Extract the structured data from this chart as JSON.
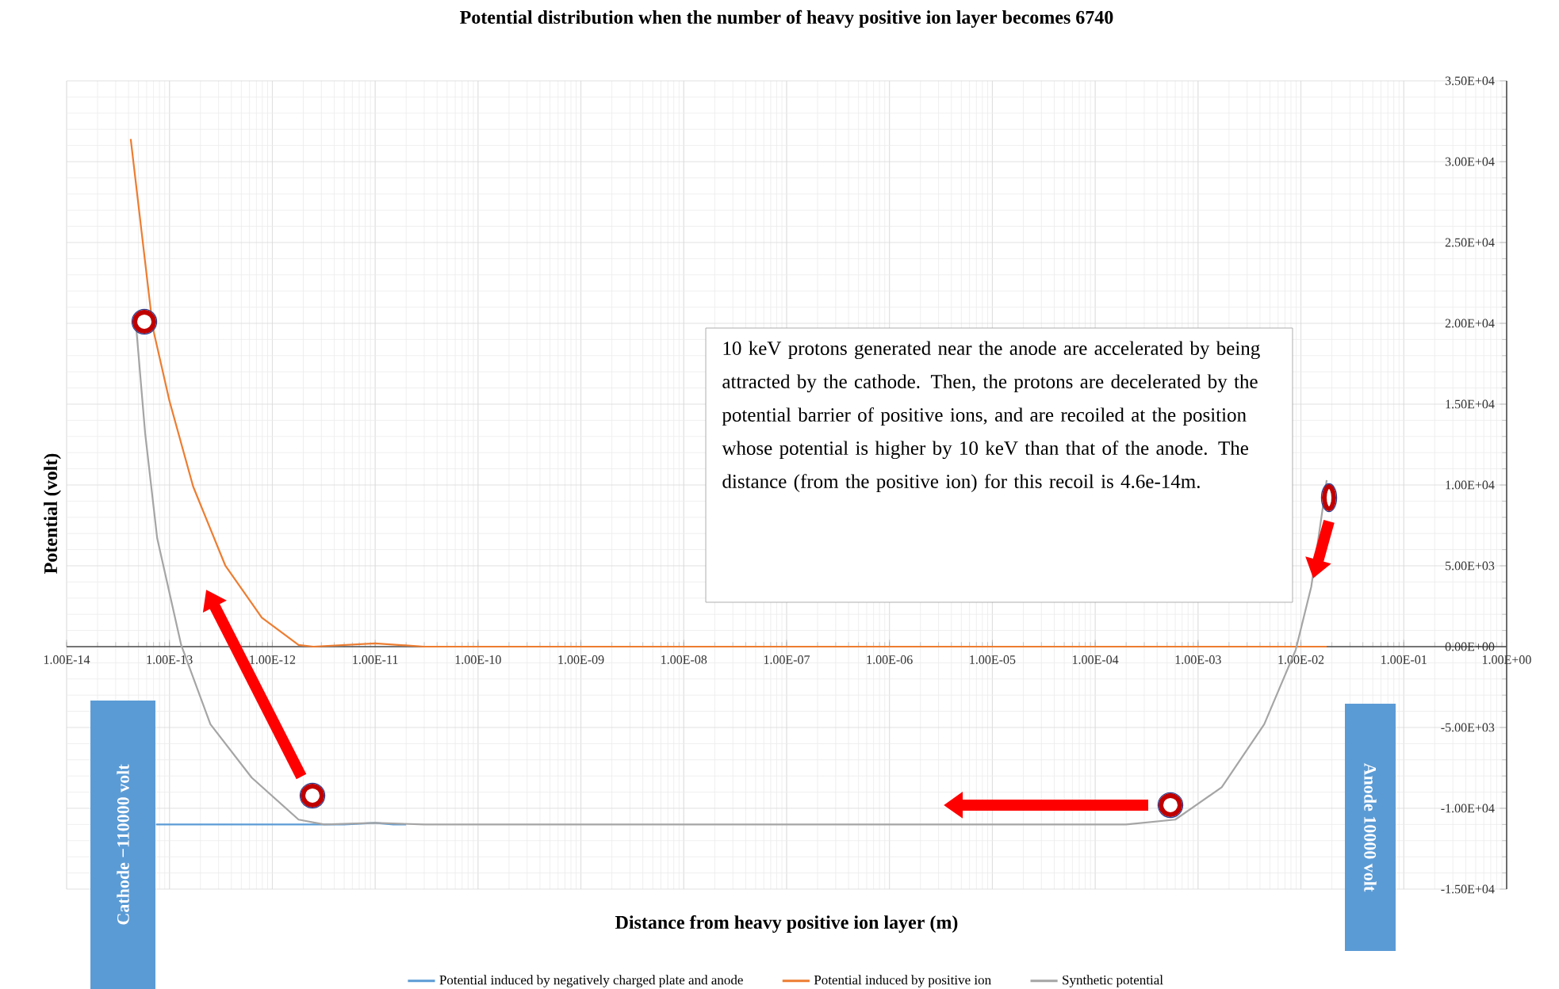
{
  "chart_data": {
    "type": "line",
    "title": "Potential distribution when the number of heavy positive ion layer becomes 6740",
    "xlabel": "Distance from heavy positive ion layer (m)",
    "ylabel": "Potential (volt)",
    "log": "x",
    "grid": true,
    "legend": "bottom",
    "line_style": "solid",
    "xlim": [
      1e-14,
      1
    ],
    "ylim": [
      -15000,
      35000
    ],
    "xticks": [
      {
        "value": 1e-14,
        "label": "1.00E-14"
      },
      {
        "value": 1e-13,
        "label": "1.00E-13"
      },
      {
        "value": 1e-12,
        "label": "1.00E-12"
      },
      {
        "value": 1e-11,
        "label": "1.00E-11"
      },
      {
        "value": 1e-10,
        "label": "1.00E-10"
      },
      {
        "value": 1e-09,
        "label": "1.00E-09"
      },
      {
        "value": 1e-08,
        "label": "1.00E-08"
      },
      {
        "value": 1e-07,
        "label": "1.00E-07"
      },
      {
        "value": 1e-06,
        "label": "1.00E-06"
      },
      {
        "value": 1e-05,
        "label": "1.00E-05"
      },
      {
        "value": 0.0001,
        "label": "1.00E-04"
      },
      {
        "value": 0.001,
        "label": "1.00E-03"
      },
      {
        "value": 0.01,
        "label": "1.00E-02"
      },
      {
        "value": 0.1,
        "label": "1.00E-01"
      },
      {
        "value": 1,
        "label": "1.00E+00"
      }
    ],
    "yticks": [
      {
        "value": -15000,
        "label": "-1.50E+04"
      },
      {
        "value": -10000,
        "label": "-1.00E+04"
      },
      {
        "value": -5000,
        "label": "-5.00E+03"
      },
      {
        "value": 0,
        "label": "0.00E+00"
      },
      {
        "value": 5000,
        "label": "5.00E+03"
      },
      {
        "value": 10000,
        "label": "1.00E+04"
      },
      {
        "value": 15000,
        "label": "1.50E+04"
      },
      {
        "value": 20000,
        "label": "2.00E+04"
      },
      {
        "value": 25000,
        "label": "2.50E+04"
      },
      {
        "value": 30000,
        "label": "3.00E+04"
      },
      {
        "value": 35000,
        "label": "3.50E+04"
      }
    ],
    "series": [
      {
        "name": "Potential induced by negatively charged plate and anode",
        "color": "#5b9bd5",
        "x": [
          7.4e-14,
          1e-12,
          5e-12,
          1e-11,
          1.5e-11,
          2e-11
        ],
        "values": [
          -11000,
          -11000,
          -11000,
          -10900,
          -11000,
          -11000
        ]
      },
      {
        "name": "Potential induced by positive ion",
        "color": "#ed7d31",
        "x": [
          4.2e-14,
          6.9e-14,
          1e-13,
          1.7e-13,
          3.5e-13,
          7.9e-13,
          1.8e-12,
          2.5e-12,
          1e-11,
          3e-11,
          0.0178
        ],
        "values": [
          31400,
          19700,
          15200,
          9900,
          5000,
          1800,
          100,
          0,
          200,
          0,
          0
        ]
      },
      {
        "name": "Synthetic potential",
        "color": "#a5a5a5",
        "x": [
          4.7e-14,
          5.8e-14,
          7.6e-14,
          1.3e-13,
          2.5e-13,
          6.3e-13,
          1.8e-12,
          3.2e-12,
          1e-11,
          3e-11,
          0.0001,
          0.0002,
          0.0006,
          0.0017,
          0.0044,
          0.0089,
          0.0126,
          0.0155,
          0.0178
        ],
        "values": [
          20100,
          13200,
          6700,
          100,
          -4800,
          -8100,
          -10700,
          -11000,
          -10900,
          -11000,
          -11000,
          -11000,
          -10700,
          -8700,
          -4800,
          -200,
          3700,
          7600,
          10300
        ]
      }
    ],
    "annotations": [
      "10 keV protons generated near the anode are accelerated by being attracted by the cathode. Then, the protons are decelerated by the potential barrier of positive ions, and are recoiled at the position whose potential is higher by 10 keV than that of the anode. The distance (from the positive ion) for this recoil is 4.6e-14m.",
      "Cathode −110000 volt",
      "Anode 10000 volt"
    ]
  }
}
